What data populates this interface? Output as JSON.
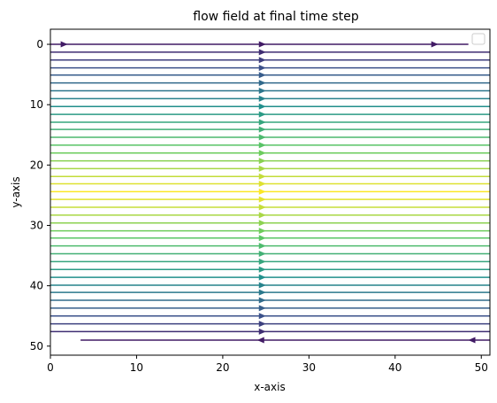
{
  "chart_data": {
    "type": "streamplot",
    "title": "flow field at final time step",
    "xlabel": "x-axis",
    "ylabel": "y-axis",
    "xlim": [
      0,
      51
    ],
    "ylim": [
      51.5,
      -2.5
    ],
    "y_inverted": true,
    "xticks": [
      0,
      10,
      20,
      30,
      40,
      50
    ],
    "yticks": [
      0,
      10,
      20,
      30,
      40,
      50
    ],
    "legend": "top-right (empty)",
    "grid": false,
    "colormap": "viridis",
    "stream_y": [
      0,
      1.3,
      2.6,
      3.9,
      5.1,
      6.4,
      7.7,
      9.0,
      10.3,
      11.6,
      12.9,
      14.1,
      15.4,
      16.7,
      18.0,
      19.3,
      20.6,
      21.9,
      23.1,
      24.4,
      25.7,
      27.0,
      28.3,
      29.6,
      30.9,
      32.1,
      33.4,
      34.7,
      36.0,
      37.3,
      38.6,
      39.9,
      41.1,
      42.4,
      43.7,
      45.0,
      46.3,
      47.6,
      49.0
    ],
    "flow_direction": [
      1,
      1,
      1,
      1,
      1,
      1,
      1,
      1,
      1,
      1,
      1,
      1,
      1,
      1,
      1,
      1,
      1,
      1,
      1,
      1,
      1,
      1,
      1,
      1,
      1,
      1,
      1,
      1,
      1,
      1,
      1,
      1,
      1,
      1,
      1,
      1,
      1,
      1,
      -1
    ],
    "speed_profile": "maximum at center (y≈24.5), minimum at top and bottom walls",
    "arrow_x": 24.5
  }
}
